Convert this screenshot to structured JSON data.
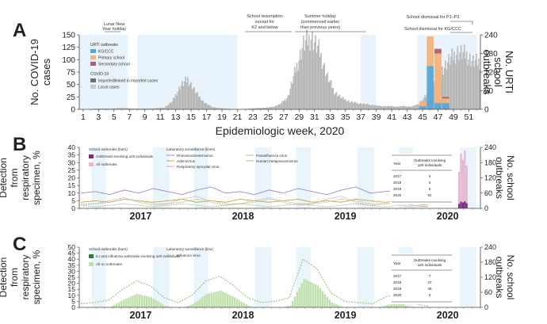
{
  "chart_data": [
    {
      "panel": "A",
      "type": "bar",
      "title": "",
      "xlabel": "Epidemiologic week, 2020",
      "ylabel": "No. COVID-19 cases",
      "ylabel_lines": [
        "No. COVID-19",
        "cases"
      ],
      "y2label": "No. URTI school outbreaks",
      "y2label_lines": [
        "No. URTI",
        "school",
        "outbreaks"
      ],
      "ylim": [
        0,
        150
      ],
      "y2lim": [
        0,
        240
      ],
      "yticks": [
        "0",
        "25",
        "50",
        "75",
        "100",
        "125",
        "150"
      ],
      "y2ticks": [
        "0",
        "60",
        "120",
        "180",
        "240"
      ],
      "xticks": [
        "1",
        "3",
        "5",
        "7",
        "9",
        "11",
        "13",
        "15",
        "17",
        "19",
        "21",
        "23",
        "25",
        "27",
        "29",
        "31",
        "33",
        "35",
        "37",
        "39",
        "41",
        "43",
        "45",
        "47",
        "49",
        "51"
      ],
      "x_minor_ticks": [
        "2",
        "4",
        "6",
        "8",
        "10",
        "12",
        "14",
        "16",
        "18",
        "20",
        "22",
        "24",
        "26",
        "28",
        "30",
        "32",
        "34",
        "36",
        "38",
        "40",
        "42",
        "44",
        "46",
        "48",
        "50",
        "52"
      ],
      "legend_titles": [
        "URTI outbreaks",
        "COVID-19"
      ],
      "legend_urti": [
        "KG/CCC",
        "Primary school",
        "Secondary school"
      ],
      "legend_covid": [
        "Imported/linked to imported cases",
        "Local cases"
      ],
      "annotations": [
        "Lunar New Year holiday",
        "School resumption except for K2 and below",
        "Summer holiday (commenced earlier than previous years)",
        "School dismissal for P1–P3",
        "School dismissal for KG/CCC"
      ],
      "covid_weekly_local": [
        0,
        0,
        1,
        1,
        1,
        2,
        2,
        1,
        1,
        1,
        2,
        3,
        15,
        45,
        60,
        35,
        15,
        5,
        2,
        1,
        0,
        0,
        1,
        2,
        3,
        4,
        10,
        25,
        80,
        130,
        145,
        120,
        70,
        35,
        22,
        15,
        12,
        10,
        8,
        6,
        6,
        5,
        6,
        5,
        10,
        30,
        55,
        80,
        100,
        115,
        110,
        95
      ],
      "urti_outbreaks": [
        {
          "week": 45,
          "kgccc": 10,
          "primary": 15,
          "secondary": 0
        },
        {
          "week": 46,
          "kgccc": 140,
          "primary": 95,
          "secondary": 0
        },
        {
          "week": 47,
          "kgccc": 20,
          "primary": 160,
          "secondary": 15
        },
        {
          "week": 48,
          "kgccc": 20,
          "primary": 15,
          "secondary": 5
        }
      ],
      "colors": {
        "kgccc": "#5aa7d6",
        "primary": "#f6b27a",
        "secondary": "#b35d6f",
        "covid_local": "#c9c9c9",
        "covid_imported": "#6f6f6f",
        "school_closure": "#e8f3fb"
      }
    },
    {
      "panel": "B",
      "type": "line",
      "title": "",
      "xlabel": "",
      "ylabel_lines": [
        "Detection",
        "from",
        "respiratory",
        "specimen, %"
      ],
      "y2label_lines": [
        "No. school",
        "outbreaks"
      ],
      "ylim": [
        0,
        40
      ],
      "y2lim": [
        0,
        240
      ],
      "yticks": [
        "0",
        "5",
        "10",
        "15",
        "20",
        "25",
        "30",
        "35",
        "40"
      ],
      "y2ticks": [
        "0",
        "60",
        "120",
        "180",
        "240"
      ],
      "years": [
        "2017",
        "2018",
        "2019",
        "2020"
      ],
      "legend_school_title": "School outbreaks (bars)",
      "legend_school": [
        "Outbreaks involving ≥20 individuals",
        "All outbreaks"
      ],
      "legend_lab_title": "Laboratory surveillance (lines)",
      "legend_lab": [
        "Rhinovirus/enterovirus",
        "Adenovirus",
        "Respiratory syncytial virus",
        "Parainfluenza virus",
        "Human metapneumovirus"
      ],
      "series": [
        {
          "name": "Rhinovirus/enterovirus",
          "values": [
            10,
            11,
            9,
            12,
            10,
            13,
            11,
            9,
            12,
            14,
            10,
            11,
            9,
            12,
            10,
            13,
            11,
            9,
            12,
            14,
            10,
            11,
            12,
            9,
            8
          ]
        },
        {
          "name": "Adenovirus",
          "values": [
            4,
            5,
            4,
            6,
            5,
            4,
            5,
            6,
            4,
            5,
            4,
            6,
            5,
            4,
            5,
            6,
            4,
            5,
            4,
            6,
            5,
            4,
            5,
            3,
            2
          ]
        },
        {
          "name": "Respiratory syncytial virus",
          "values": [
            2,
            3,
            5,
            7,
            4,
            2,
            3,
            6,
            8,
            4,
            2,
            3,
            5,
            7,
            4,
            2,
            3,
            6,
            8,
            4,
            2,
            3,
            4,
            2,
            1
          ]
        },
        {
          "name": "Parainfluenza virus",
          "values": [
            3,
            3,
            4,
            6,
            5,
            3,
            3,
            4,
            6,
            5,
            3,
            3,
            4,
            6,
            5,
            3,
            3,
            4,
            6,
            5,
            3,
            3,
            4,
            2,
            1
          ]
        },
        {
          "name": "Human metapneumovirus",
          "values": [
            2,
            1,
            2,
            3,
            2,
            1,
            2,
            3,
            2,
            1,
            2,
            3,
            2,
            1,
            2,
            3,
            2,
            1,
            2,
            3,
            2,
            1,
            2,
            1,
            1
          ]
        }
      ],
      "table": {
        "headers": [
          "Year",
          "Outbreaks involving ≥20 individuals"
        ],
        "rows": [
          [
            "2017",
            "3"
          ],
          [
            "2018",
            "3"
          ],
          [
            "2019",
            "5"
          ],
          [
            "2020",
            "81"
          ]
        ]
      },
      "colors": {
        "rhino": "#9b8acb",
        "adeno": "#c9a431",
        "rsv": "#d9a7a7",
        "para": "#a9c9a0",
        "hmpv": "#b8b98b",
        "bar_large": "#7a2a7f",
        "bar_all": "#e7b7cf"
      }
    },
    {
      "panel": "C",
      "type": "bar",
      "title": "",
      "xlabel": "",
      "ylabel_lines": [
        "Detection",
        "from",
        "respiratory",
        "specimen, %"
      ],
      "y2label_lines": [
        "No. school",
        "outbreaks"
      ],
      "ylim": [
        0,
        50
      ],
      "y2lim": [
        0,
        240
      ],
      "yticks": [
        "0",
        "5",
        "10",
        "15",
        "20",
        "25",
        "30",
        "35",
        "40",
        "45",
        "50"
      ],
      "y2ticks": [
        "0",
        "60",
        "120",
        "180",
        "240"
      ],
      "years": [
        "2017",
        "2018",
        "2019",
        "2020"
      ],
      "legend_school_title": "School outbreaks (bars)",
      "legend_school": [
        "ILI and influenza outbreaks involving ≥20 individuals",
        "All ILI outbreaks"
      ],
      "legend_lab_title": "Laboratory surveillance (line)",
      "legend_lab": [
        "Influenza virus"
      ],
      "series": [
        {
          "name": "Influenza virus",
          "values": [
            3,
            4,
            6,
            15,
            22,
            18,
            8,
            4,
            10,
            22,
            26,
            18,
            8,
            4,
            5,
            8,
            40,
            32,
            12,
            5,
            4,
            3,
            9,
            11,
            3,
            1
          ]
        }
      ],
      "table": {
        "headers": [
          "Year",
          "Outbreaks involving ≥20 individuals"
        ],
        "rows": [
          [
            "2017",
            "7"
          ],
          [
            "2018",
            "27"
          ],
          [
            "2019",
            "35"
          ],
          [
            "2020",
            "3"
          ]
        ]
      },
      "colors": {
        "flu_line": "#9cc58a",
        "bar_all": "#bfe0aa",
        "bar_large": "#2f7d2f"
      }
    }
  ],
  "panel_labels": [
    "A",
    "B",
    "C"
  ]
}
